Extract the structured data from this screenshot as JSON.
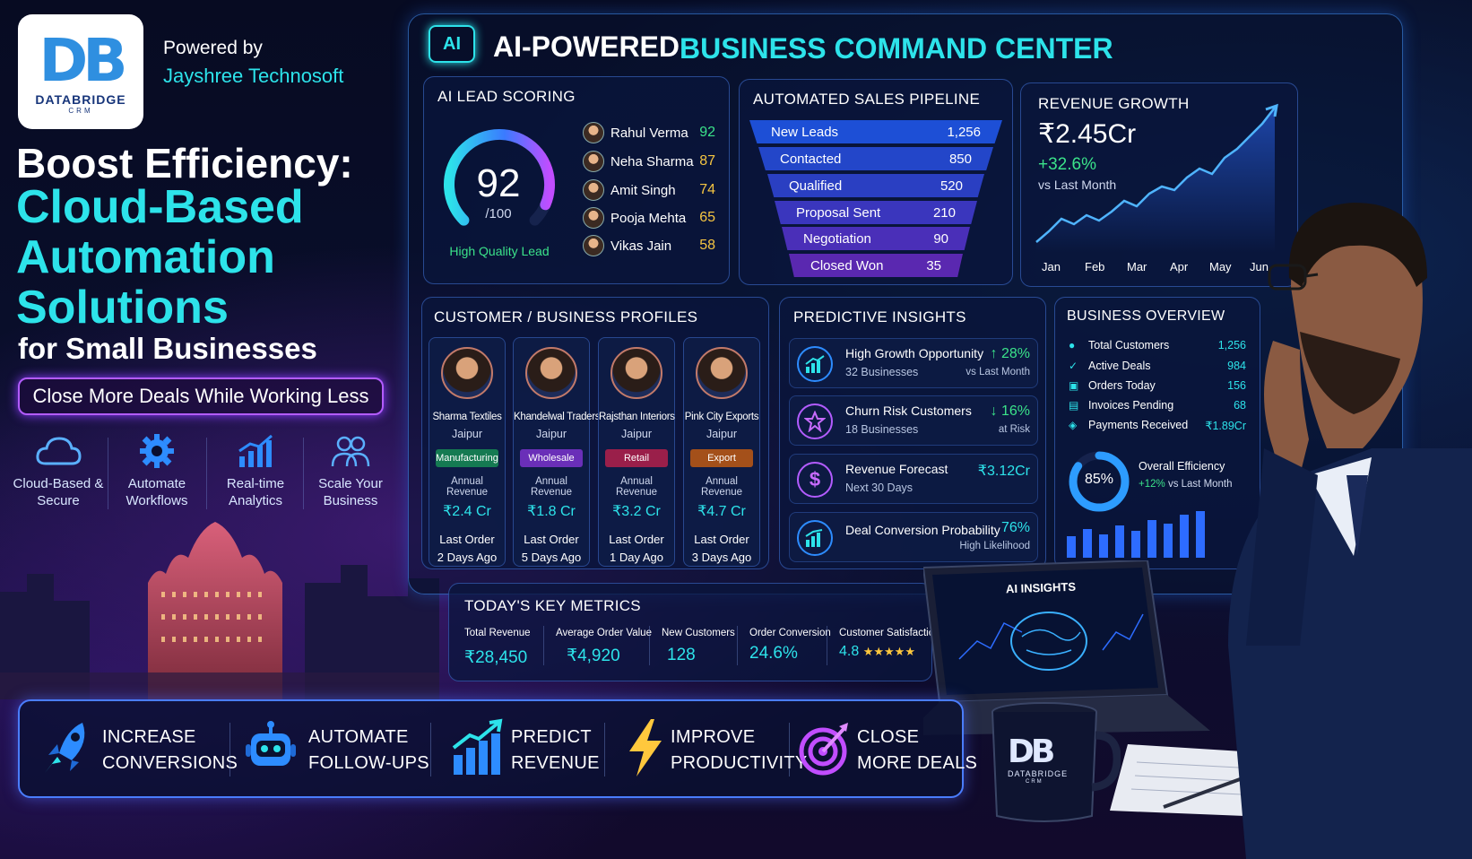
{
  "logo": {
    "mark_a": "D",
    "mark_b": "B",
    "name": "DATABRIDGE",
    "sub": "CRM"
  },
  "header": {
    "powered_by": "Powered by",
    "company": "Jayshree Technosoft"
  },
  "hero": {
    "line1": "Boost Efficiency:",
    "line2": "Cloud-Based Automation Solutions",
    "line3": "for Small Businesses",
    "cta": "Close More Deals While Working Less"
  },
  "features": [
    {
      "label": "Cloud-Based & Secure",
      "icon": "cloud-icon"
    },
    {
      "label": "Automate Workflows",
      "icon": "gear-icon"
    },
    {
      "label": "Real-time Analytics",
      "icon": "bar-chart-icon"
    },
    {
      "label": "Scale Your Business",
      "icon": "users-icon"
    }
  ],
  "console": {
    "badge": "AI",
    "title_a": "AI-POWERED",
    "title_b": "BUSINESS COMMAND CENTER"
  },
  "lead_scoring": {
    "title": "AI LEAD SCORING",
    "score": "92",
    "max": "/100",
    "score_value": 92,
    "quality": "High Quality Lead",
    "leads": [
      {
        "name": "Rahul Verma",
        "score": "92",
        "color": "#3be38a"
      },
      {
        "name": "Neha Sharma",
        "score": "87",
        "color": "#f5c542"
      },
      {
        "name": "Amit Singh",
        "score": "74",
        "color": "#f5c542"
      },
      {
        "name": "Pooja Mehta",
        "score": "65",
        "color": "#f5c542"
      },
      {
        "name": "Vikas Jain",
        "score": "58",
        "color": "#f5c542"
      }
    ]
  },
  "pipeline": {
    "title": "AUTOMATED SALES PIPELINE",
    "stages": [
      {
        "label": "New Leads",
        "value": "1,256",
        "color": "#1d4fd6"
      },
      {
        "label": "Contacted",
        "value": "850",
        "color": "#2346c9"
      },
      {
        "label": "Qualified",
        "value": "520",
        "color": "#2a3fc2"
      },
      {
        "label": "Proposal Sent",
        "value": "210",
        "color": "#3a36bd"
      },
      {
        "label": "Negotiation",
        "value": "90",
        "color": "#4a2fb8"
      },
      {
        "label": "Closed Won",
        "value": "35",
        "color": "#5a28b0"
      }
    ]
  },
  "revenue": {
    "title": "REVENUE GROWTH",
    "amount": "₹2.45Cr",
    "change": "+32.6%",
    "compare": "vs Last Month",
    "months": [
      "Jan",
      "Feb",
      "Mar",
      "Apr",
      "May",
      "Jun"
    ]
  },
  "profiles": {
    "title": "CUSTOMER / BUSINESS PROFILES",
    "revenue_label": "Annual Revenue",
    "last_order_label": "Last Order",
    "items": [
      {
        "name": "Sharma Textiles",
        "city": "Jaipur",
        "tag": "Manufacturing",
        "tag_color": "#157a52",
        "revenue": "₹2.4 Cr",
        "last": "2 Days Ago"
      },
      {
        "name": "Khandelwal Traders",
        "city": "Jaipur",
        "tag": "Wholesale",
        "tag_color": "#6a2fb8",
        "revenue": "₹1.8 Cr",
        "last": "5 Days Ago"
      },
      {
        "name": "Rajsthan Interiors",
        "city": "Jaipur",
        "tag": "Retail",
        "tag_color": "#9a1f4a",
        "revenue": "₹3.2 Cr",
        "last": "1 Day Ago"
      },
      {
        "name": "Pink City Exports",
        "city": "Jaipur",
        "tag": "Export",
        "tag_color": "#a4501a",
        "revenue": "₹4.7 Cr",
        "last": "3 Days Ago"
      }
    ]
  },
  "predictive": {
    "title": "PREDICTIVE INSIGHTS",
    "items": [
      {
        "title": "High Growth Opportunity",
        "sub": "32 Businesses",
        "value": "↑ 28%",
        "note": "vs Last Month",
        "color": "#3be38a",
        "icon": "growth-chart-icon"
      },
      {
        "title": "Churn Risk Customers",
        "sub": "18 Businesses",
        "value": "↓ 16%",
        "note": "at Risk",
        "color": "#3be38a",
        "icon": "risk-icon"
      },
      {
        "title": "Revenue Forecast",
        "sub": "Next 30 Days",
        "value": "₹3.12Cr",
        "note": "",
        "color": "#2de3ea",
        "icon": "dollar-icon"
      },
      {
        "title": "Deal Conversion Probability",
        "sub": "",
        "value": "76%",
        "note": "High Likelihood",
        "color": "#2de3ea",
        "icon": "conversion-chart-icon"
      }
    ]
  },
  "overview": {
    "title": "BUSINESS OVERVIEW",
    "rows": [
      {
        "label": "Total Customers",
        "value": "1,256",
        "icon": "users-icon"
      },
      {
        "label": "Active Deals",
        "value": "984",
        "icon": "check-icon"
      },
      {
        "label": "Orders Today",
        "value": "156",
        "icon": "box-icon"
      },
      {
        "label": "Invoices Pending",
        "value": "68",
        "icon": "invoice-icon"
      },
      {
        "label": "Payments Received",
        "value": "₹1.89Cr",
        "icon": "payment-icon"
      }
    ],
    "efficiency": "85%",
    "efficiency_value": 85,
    "eff_label": "Overall Efficiency",
    "eff_change": "+12%",
    "eff_compare": "vs Last Month"
  },
  "key_metrics": {
    "title": "TODAY'S KEY METRICS",
    "items": [
      {
        "label": "Total Revenue",
        "value": "₹28,450"
      },
      {
        "label": "Average Order Value",
        "value": "₹4,920"
      },
      {
        "label": "New Customers",
        "value": "128"
      },
      {
        "label": "Order Conversion",
        "value": "24.6%"
      },
      {
        "label": "Customer Satisfaction",
        "value": "4.8",
        "stars": "★★★★★"
      }
    ]
  },
  "laptop": {
    "title": "AI INSIGHTS"
  },
  "bottom": [
    {
      "l1": "INCREASE",
      "l2": "CONVERSIONS",
      "icon": "rocket-icon"
    },
    {
      "l1": "AUTOMATE",
      "l2": "FOLLOW-UPS",
      "icon": "robot-icon"
    },
    {
      "l1": "PREDICT",
      "l2": "REVENUE",
      "icon": "trend-chart-icon"
    },
    {
      "l1": "IMPROVE",
      "l2": "PRODUCTIVITY",
      "icon": "lightning-icon"
    },
    {
      "l1": "CLOSE",
      "l2": "MORE DEALS",
      "icon": "target-icon"
    }
  ],
  "colors": {
    "accent": "#2de3ea",
    "positive": "#3be38a",
    "brand": "#17357a",
    "purple": "#b35cff"
  }
}
